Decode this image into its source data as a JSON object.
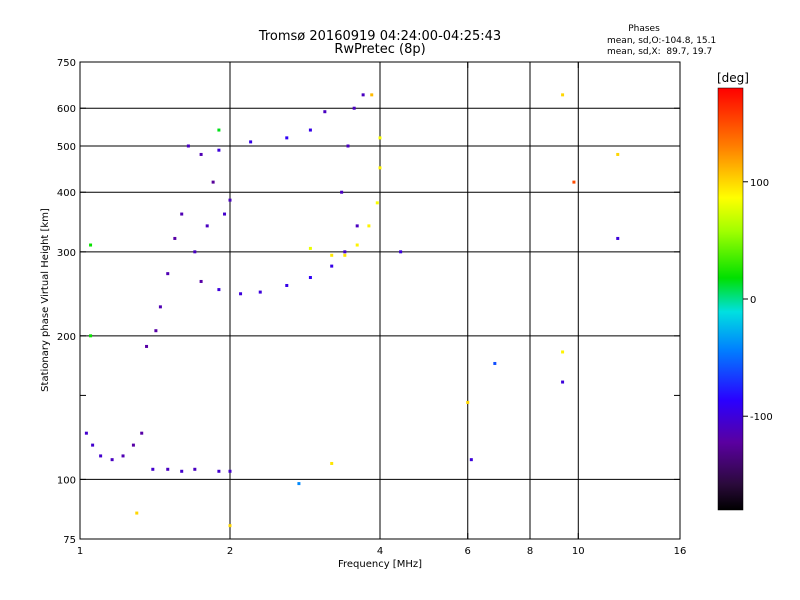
{
  "chart_data": {
    "type": "scatter",
    "title": "Tromsø 20160919 04:24:00-04:25:43",
    "subtitle": "RwPretec (8p)",
    "stats": {
      "header": "Phases",
      "line_o": "mean, sd,O:-104.8, 15.1",
      "line_x": "mean, sd,X:  89.7, 19.7"
    },
    "xlabel": "Frequency [MHz]",
    "ylabel": "Stationary phase Virtual Height [km]",
    "x_scale": "log",
    "y_scale": "log",
    "xlim": [
      1,
      16
    ],
    "ylim": [
      75,
      750
    ],
    "x_ticks": [
      1,
      2,
      4,
      6,
      8,
      10,
      16
    ],
    "x_tick_labels": [
      "1",
      "2",
      "4",
      "6",
      "8",
      "10",
      "16"
    ],
    "x_grid": [
      2,
      4,
      6,
      8,
      10
    ],
    "y_ticks": [
      75,
      100,
      200,
      300,
      400,
      500,
      600,
      750
    ],
    "y_tick_labels": [
      "75",
      "100",
      "200",
      "300",
      "400",
      "500",
      "600",
      "750"
    ],
    "y_grid": [
      100,
      200,
      300,
      400,
      500,
      600
    ],
    "y_minor": [
      150
    ],
    "grid": true,
    "colorbar": {
      "label": "[deg]",
      "range": [
        -180,
        180
      ],
      "ticks": [
        100,
        0,
        -100
      ],
      "tick_labels": [
        "100",
        "0",
        "-100"
      ],
      "colormap": "rainbow"
    },
    "series": [
      {
        "values": [
          {
            "x": 1.03,
            "y": 125,
            "phase": -105
          },
          {
            "x": 1.06,
            "y": 118,
            "phase": -105
          },
          {
            "x": 1.1,
            "y": 112,
            "phase": -105
          },
          {
            "x": 1.16,
            "y": 110,
            "phase": -110
          },
          {
            "x": 1.22,
            "y": 112,
            "phase": -115
          },
          {
            "x": 1.28,
            "y": 118,
            "phase": -120
          },
          {
            "x": 1.33,
            "y": 125,
            "phase": -120
          },
          {
            "x": 1.4,
            "y": 105,
            "phase": -105
          },
          {
            "x": 1.5,
            "y": 105,
            "phase": -110
          },
          {
            "x": 1.6,
            "y": 104,
            "phase": -105
          },
          {
            "x": 1.7,
            "y": 105,
            "phase": -110
          },
          {
            "x": 1.9,
            "y": 104,
            "phase": -105
          },
          {
            "x": 2.0,
            "y": 104,
            "phase": -105
          },
          {
            "x": 1.36,
            "y": 190,
            "phase": -120
          },
          {
            "x": 1.42,
            "y": 205,
            "phase": -120
          },
          {
            "x": 1.45,
            "y": 230,
            "phase": -115
          },
          {
            "x": 1.5,
            "y": 270,
            "phase": -115
          },
          {
            "x": 1.55,
            "y": 320,
            "phase": -120
          },
          {
            "x": 1.6,
            "y": 360,
            "phase": -115
          },
          {
            "x": 1.7,
            "y": 300,
            "phase": -110
          },
          {
            "x": 1.75,
            "y": 260,
            "phase": -120
          },
          {
            "x": 1.8,
            "y": 340,
            "phase": -110
          },
          {
            "x": 1.85,
            "y": 420,
            "phase": -125
          },
          {
            "x": 1.95,
            "y": 360,
            "phase": -105
          },
          {
            "x": 2.0,
            "y": 385,
            "phase": -110
          },
          {
            "x": 1.65,
            "y": 500,
            "phase": -110
          },
          {
            "x": 1.75,
            "y": 480,
            "phase": -115
          },
          {
            "x": 1.9,
            "y": 250,
            "phase": -100
          },
          {
            "x": 2.1,
            "y": 245,
            "phase": -100
          },
          {
            "x": 2.3,
            "y": 247,
            "phase": -100
          },
          {
            "x": 2.6,
            "y": 255,
            "phase": -95
          },
          {
            "x": 2.9,
            "y": 265,
            "phase": -90
          },
          {
            "x": 3.2,
            "y": 280,
            "phase": -95
          },
          {
            "x": 3.4,
            "y": 300,
            "phase": -105
          },
          {
            "x": 3.6,
            "y": 340,
            "phase": -110
          },
          {
            "x": 1.9,
            "y": 490,
            "phase": -100
          },
          {
            "x": 2.2,
            "y": 510,
            "phase": -95
          },
          {
            "x": 2.6,
            "y": 520,
            "phase": -90
          },
          {
            "x": 2.9,
            "y": 540,
            "phase": -95
          },
          {
            "x": 3.1,
            "y": 590,
            "phase": -110
          },
          {
            "x": 3.35,
            "y": 400,
            "phase": -110
          },
          {
            "x": 3.45,
            "y": 500,
            "phase": -110
          },
          {
            "x": 3.55,
            "y": 600,
            "phase": -110
          },
          {
            "x": 3.7,
            "y": 640,
            "phase": -110
          }
        ]
      },
      {
        "values": [
          {
            "x": 3.2,
            "y": 295,
            "phase": 95
          },
          {
            "x": 3.4,
            "y": 295,
            "phase": 95
          },
          {
            "x": 3.6,
            "y": 310,
            "phase": 90
          },
          {
            "x": 3.8,
            "y": 340,
            "phase": 90
          },
          {
            "x": 3.95,
            "y": 380,
            "phase": 85
          },
          {
            "x": 4.0,
            "y": 450,
            "phase": 90
          },
          {
            "x": 4.0,
            "y": 520,
            "phase": 85
          },
          {
            "x": 3.85,
            "y": 640,
            "phase": 110
          },
          {
            "x": 3.2,
            "y": 108,
            "phase": 95
          },
          {
            "x": 2.9,
            "y": 305,
            "phase": 80
          },
          {
            "x": 9.3,
            "y": 640,
            "phase": 100
          },
          {
            "x": 9.3,
            "y": 185,
            "phase": 90
          },
          {
            "x": 12.0,
            "y": 480,
            "phase": 100
          },
          {
            "x": 6.0,
            "y": 145,
            "phase": 100
          },
          {
            "x": 1.05,
            "y": 310,
            "phase": 20
          },
          {
            "x": 1.05,
            "y": 200,
            "phase": 20
          },
          {
            "x": 1.3,
            "y": 85,
            "phase": 100
          },
          {
            "x": 2.0,
            "y": 80,
            "phase": 100
          },
          {
            "x": 1.9,
            "y": 540,
            "phase": 15
          },
          {
            "x": 2.75,
            "y": 98,
            "phase": -40
          },
          {
            "x": 9.8,
            "y": 420,
            "phase": 150
          },
          {
            "x": 6.8,
            "y": 175,
            "phase": -60
          },
          {
            "x": 4.4,
            "y": 300,
            "phase": -100
          },
          {
            "x": 6.1,
            "y": 110,
            "phase": -100
          },
          {
            "x": 12.0,
            "y": 320,
            "phase": -100
          },
          {
            "x": 9.3,
            "y": 160,
            "phase": -100
          }
        ]
      }
    ]
  }
}
